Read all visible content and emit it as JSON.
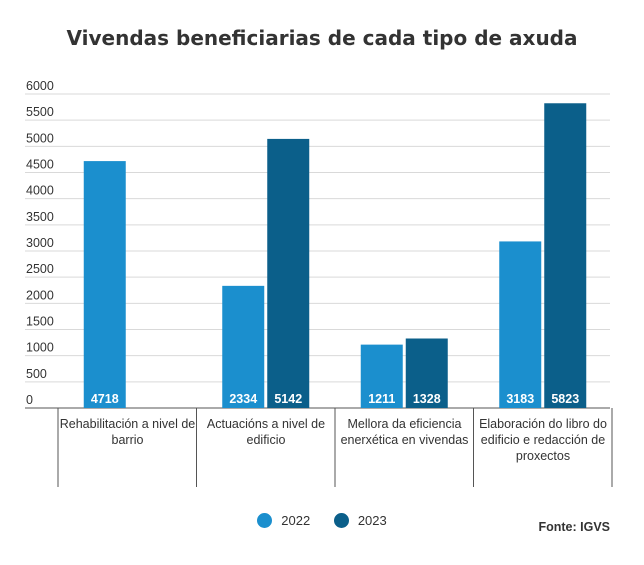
{
  "chart_data": {
    "type": "bar",
    "title": "Vivendas beneficiarias de cada tipo de axuda",
    "categories": [
      "Rehabilitación a nivel de barrio",
      "Actuacións a nivel de edificio",
      "Mellora da eficiencia enerxética en vivendas",
      "Elaboración do libro do edificio e redacción de proxectos"
    ],
    "series": [
      {
        "name": "2022",
        "color": "#1b8fce",
        "values": [
          4718,
          2334,
          1211,
          3183
        ]
      },
      {
        "name": "2023",
        "color": "#0b5f8a",
        "values": [
          null,
          5142,
          1328,
          5823
        ]
      }
    ],
    "ylim": [
      0,
      6000
    ],
    "yticks": [
      0,
      500,
      1000,
      1500,
      2000,
      2500,
      3000,
      3500,
      4000,
      4500,
      5000,
      5500,
      6000
    ],
    "grid": true,
    "legend": "bottom",
    "source": "Fonte: IGVS"
  }
}
